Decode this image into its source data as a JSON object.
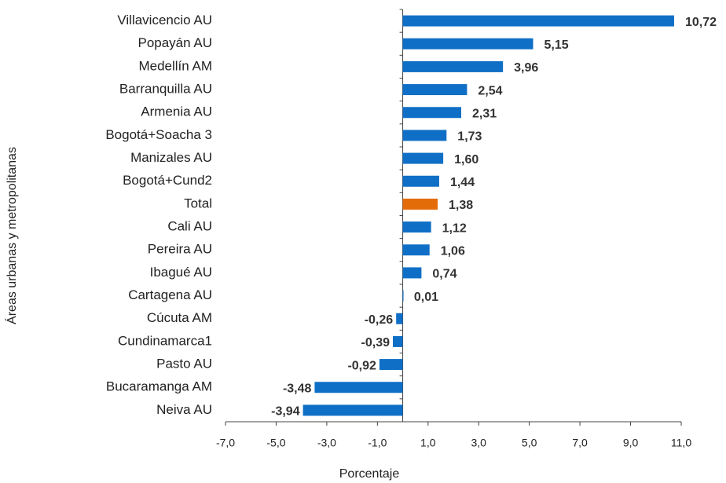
{
  "chart_data": {
    "type": "barh",
    "categories": [
      "Villavicencio AU",
      "Popayán AU",
      "Medellín AM",
      "Barranquilla AU",
      "Armenia AU",
      "Bogotá+Soacha 3",
      "Manizales AU",
      "Bogotá+Cund2",
      "Total",
      "Cali AU",
      "Pereira AU",
      "Ibagué AU",
      "Cartagena AU",
      "Cúcuta AM",
      "Cundinamarca1",
      "Pasto AU",
      "Bucaramanga AM",
      "Neiva AU"
    ],
    "values": [
      10.72,
      5.15,
      3.96,
      2.54,
      2.31,
      1.73,
      1.6,
      1.44,
      1.38,
      1.12,
      1.06,
      0.74,
      0.01,
      -0.26,
      -0.39,
      -0.92,
      -3.48,
      -3.94
    ],
    "value_labels": [
      "10,72",
      "5,15",
      "3,96",
      "2,54",
      "2,31",
      "1,73",
      "1,60",
      "1,44",
      "1,38",
      "1,12",
      "1,06",
      "0,74",
      "0,01",
      "-0,26",
      "-0,39",
      "-0,92",
      "-3,48",
      "-3,94"
    ],
    "colors": [
      "#0f6fc6",
      "#0f6fc6",
      "#0f6fc6",
      "#0f6fc6",
      "#0f6fc6",
      "#0f6fc6",
      "#0f6fc6",
      "#0f6fc6",
      "#e36c09",
      "#0f6fc6",
      "#0f6fc6",
      "#0f6fc6",
      "#0f6fc6",
      "#0f6fc6",
      "#0f6fc6",
      "#0f6fc6",
      "#0f6fc6",
      "#0f6fc6"
    ],
    "xlim": [
      -7,
      11
    ],
    "xticks": [
      {
        "value": -7,
        "label": "-7,0"
      },
      {
        "value": -5,
        "label": "-5,0"
      },
      {
        "value": -3,
        "label": "-3,0"
      },
      {
        "value": -1,
        "label": "-1,0"
      },
      {
        "value": 1,
        "label": "1,0"
      },
      {
        "value": 3,
        "label": "3,0"
      },
      {
        "value": 5,
        "label": "5,0"
      },
      {
        "value": 7,
        "label": "7,0"
      },
      {
        "value": 9,
        "label": "9,0"
      },
      {
        "value": 11,
        "label": "11,0"
      }
    ],
    "x_label": "Porcentaje",
    "y_label": "Áreas urbanas y metropolitanas"
  }
}
